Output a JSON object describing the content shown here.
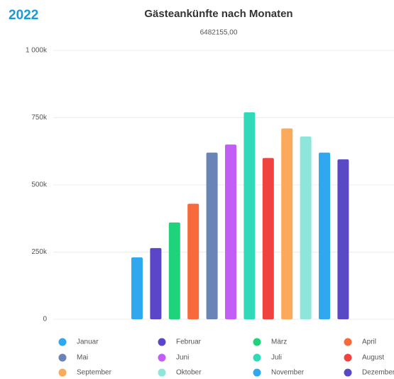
{
  "year": "2022",
  "chart_data": {
    "type": "bar",
    "title": "Gästeankünfte nach Monaten",
    "subtitle": "6482155,00",
    "categories": [
      "Januar",
      "Februar",
      "März",
      "April",
      "Mai",
      "Juni",
      "Juli",
      "August",
      "September",
      "Oktober",
      "November",
      "Dezember"
    ],
    "values": [
      230000,
      265000,
      360000,
      430000,
      620000,
      650000,
      770000,
      600000,
      710000,
      680000,
      620000,
      595000
    ],
    "colors": [
      "#2fa8f0",
      "#5b45c9",
      "#1fd37a",
      "#f86a3c",
      "#6a84b8",
      "#c25ef5",
      "#2fd9b9",
      "#f0423e",
      "#fba95a",
      "#8ee6da",
      "#2fa8f0",
      "#5a49c4"
    ],
    "ylim": [
      0,
      1000000
    ],
    "yticks": [
      0,
      {
        "value": 250000,
        "label": "250k"
      },
      {
        "value": 500000,
        "label": "500k"
      },
      {
        "value": 750000,
        "label": "750k"
      },
      {
        "value": 1000000,
        "label": "1 000k"
      }
    ],
    "grid": true
  }
}
